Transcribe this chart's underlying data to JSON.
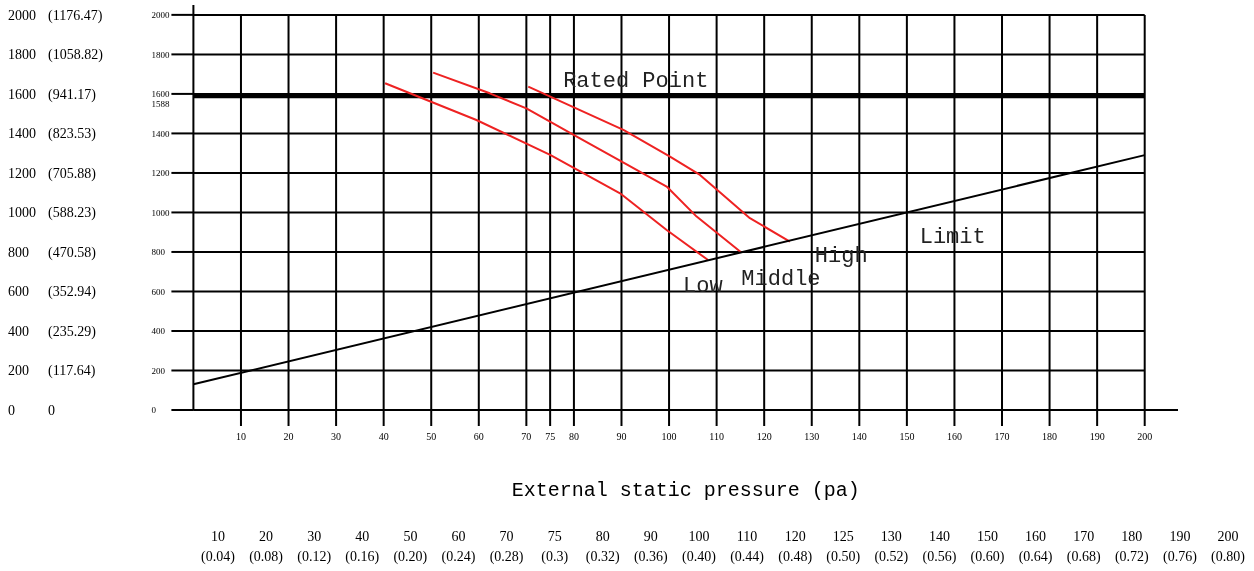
{
  "chart_data": {
    "type": "line",
    "xlabel": "External static pressure  (pa)",
    "xlim": [
      0,
      207
    ],
    "xticks": [
      10,
      20,
      30,
      40,
      50,
      60,
      70,
      75,
      80,
      90,
      100,
      110,
      120,
      130,
      140,
      150,
      160,
      170,
      180,
      190,
      200
    ],
    "ylim": [
      0,
      2050
    ],
    "yticks": [
      0,
      200,
      400,
      600,
      800,
      1000,
      1200,
      1400,
      1600,
      1800,
      2000
    ],
    "y2lim": [
      0,
      1205.88
    ],
    "y2ticks": [
      0,
      {
        "value": 117.64,
        "label": "(117.64)"
      },
      {
        "value": 235.29,
        "label": "(235.29)"
      },
      {
        "value": 352.94,
        "label": "(352.94)"
      },
      {
        "value": 470.58,
        "label": "(470.58)"
      },
      {
        "value": 588.23,
        "label": "(588.23)"
      },
      {
        "value": 705.88,
        "label": "(705.88)"
      },
      {
        "value": 823.53,
        "label": "(823.53)"
      },
      {
        "value": 941.17,
        "label": "(941.17)"
      },
      {
        "value": 1058.82,
        "label": "(1058.82)"
      },
      {
        "value": 1176.47,
        "label": "(1176.47)"
      }
    ],
    "y3lim": [
      0,
      2050
    ],
    "y3ticks": [
      0,
      200,
      400,
      600,
      800,
      1000,
      1200,
      1400,
      1600,
      1800,
      2000
    ],
    "grid": true,
    "line_style": "solid",
    "marker": "none",
    "series": [
      {
        "name": "Low",
        "color": "#ee2222",
        "x": [
          40.3,
          59.5,
          75,
          89.7,
          99.5,
          108.2
        ],
        "values": [
          1654,
          1468,
          1291,
          1097,
          911,
          759
        ]
      },
      {
        "name": "Middle",
        "color": "#ee2222",
        "x": [
          50.4,
          62.3,
          70,
          80.6,
          99.5,
          105.8,
          115.2
        ],
        "values": [
          1708,
          1603,
          1527,
          1384,
          1131,
          979,
          797
        ]
      },
      {
        "name": "High",
        "color": "#ee2222",
        "x": [
          70.4,
          90.4,
          100.2,
          106.5,
          117,
          125.4
        ],
        "values": [
          1637,
          1418,
          1283,
          1190,
          971,
          852
        ]
      },
      {
        "name": "Limit",
        "color": "#000000",
        "x": [
          0,
          200
        ],
        "values": [
          130,
          1290
        ]
      }
    ],
    "ref_lines": [
      {
        "axis": "y",
        "value": 1588,
        "label": "1588",
        "color": "#000000"
      }
    ],
    "annotations": [
      {
        "text": "Rated Point",
        "x": 93,
        "y": 1588
      },
      "10 (0.04)",
      "20 (0.08)",
      "30 (0.12)",
      "40 (0.16)",
      "50 (0.20)",
      "60 (0.24)",
      "70 (0.28)",
      "75 (0.3)",
      "80 (0.32)",
      "90 (0.36)",
      "100 (0.40)",
      "110 (0.44)",
      "120 (0.48)",
      "125 (0.50)",
      "130 (0.52)",
      "140 (0.56)",
      "150 (0.60)",
      "160 (0.64)",
      "170 (0.68)",
      "180 (0.72)",
      "190 (0.76)",
      "200 (0.80)"
    ]
  }
}
